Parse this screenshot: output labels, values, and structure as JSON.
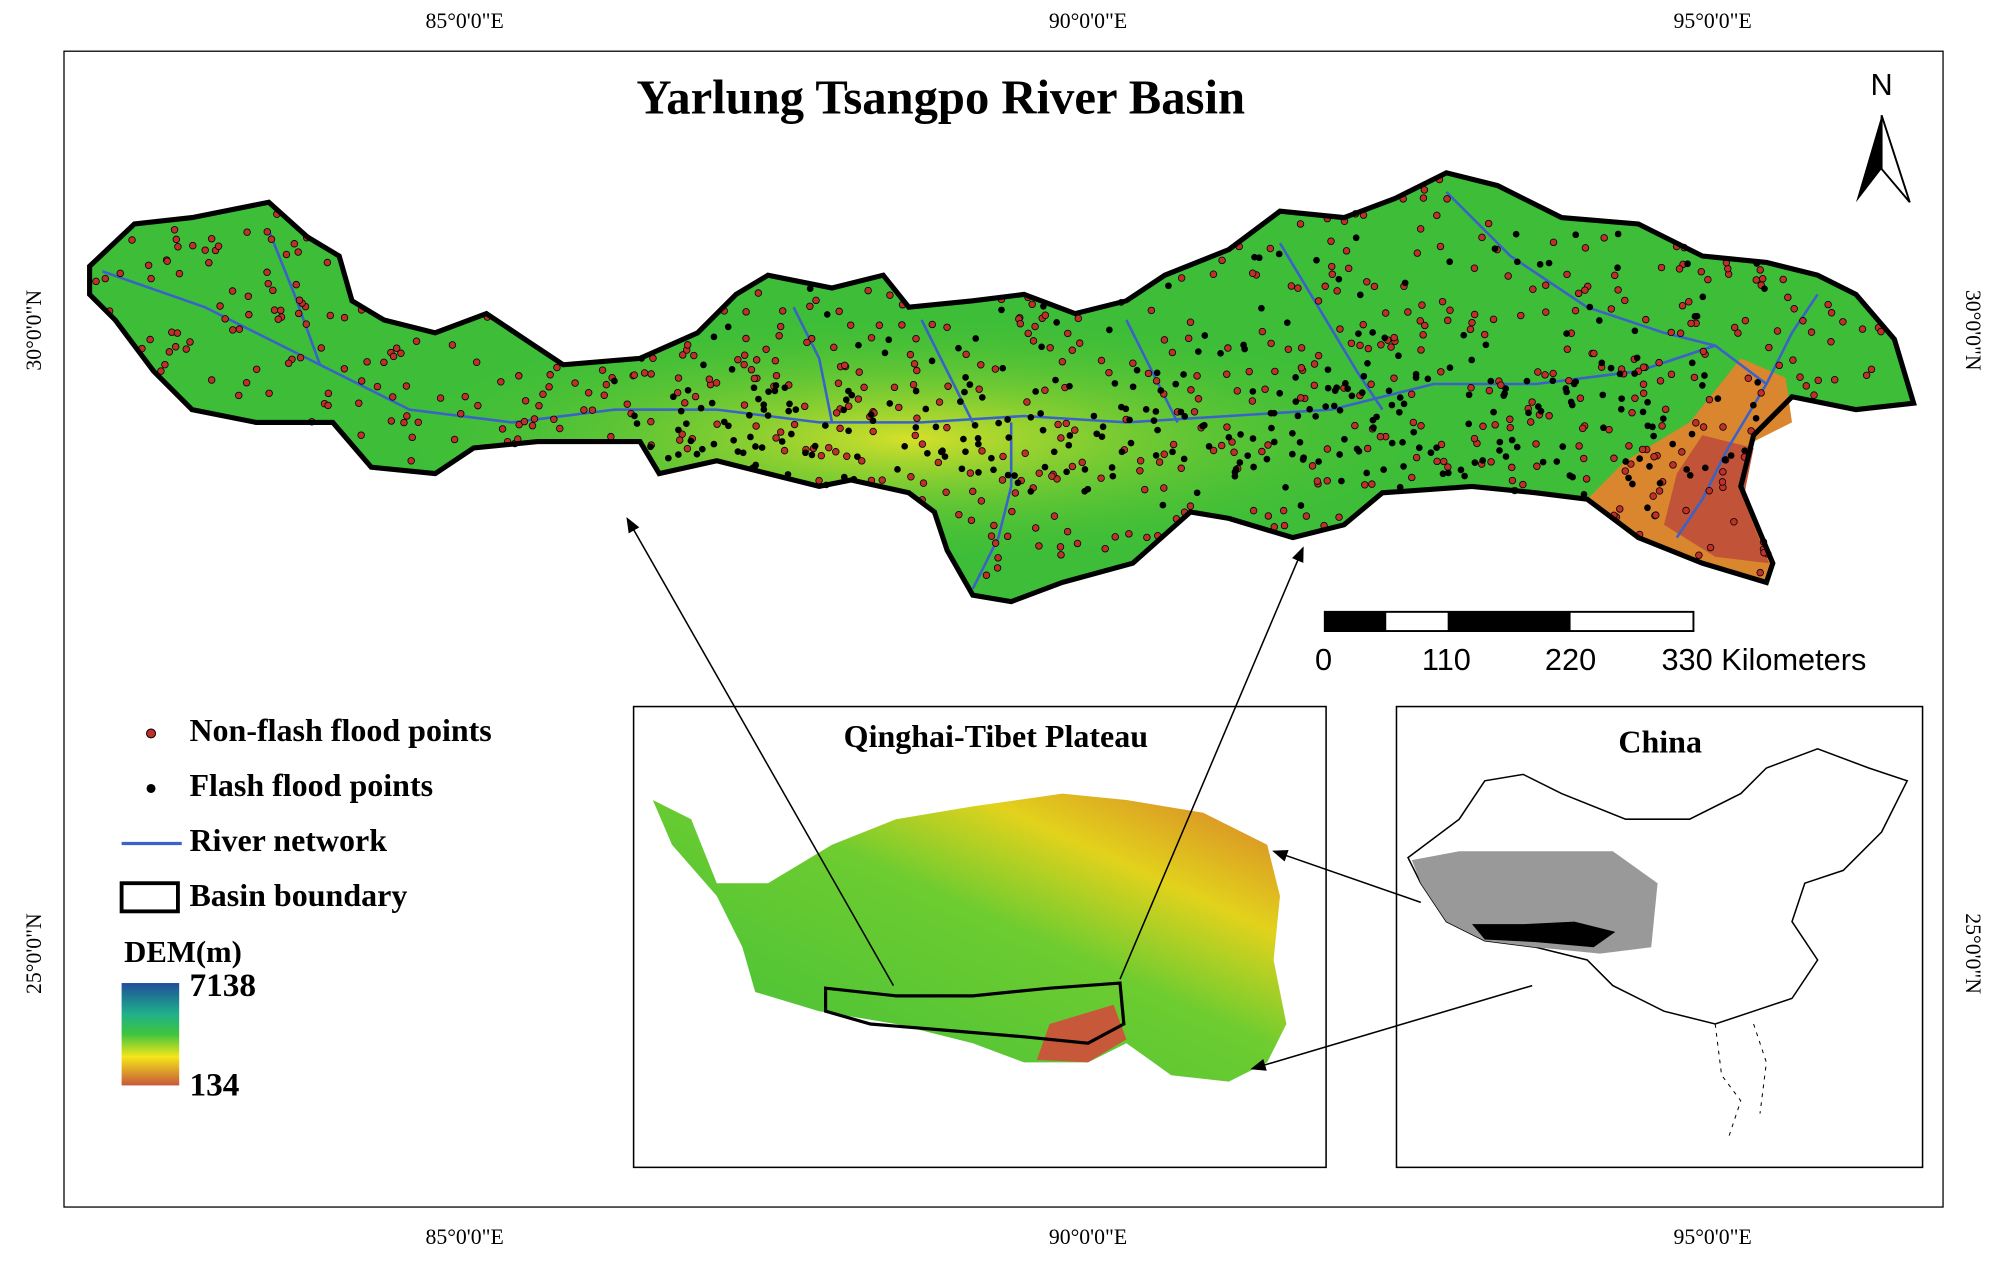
{
  "title": "Yarlung Tsangpo River Basin",
  "north": "N",
  "longitude_labels": [
    "85°0'0\"E",
    "90°0'0\"E",
    "95°0'0\"E"
  ],
  "latitude_labels": [
    "30°0'0\"N",
    "25°0'0\"N"
  ],
  "legend": {
    "items": [
      "Non-flash flood points",
      "Flash flood points",
      "River network",
      "Basin boundary"
    ],
    "dem_title": "DEM(m)",
    "dem_max": 7138,
    "dem_min": 134
  },
  "scale_bar": [
    "0",
    "110",
    "220",
    "330 Kilometers"
  ],
  "insets": [
    "Qinghai-Tibet Plateau",
    "China"
  ]
}
